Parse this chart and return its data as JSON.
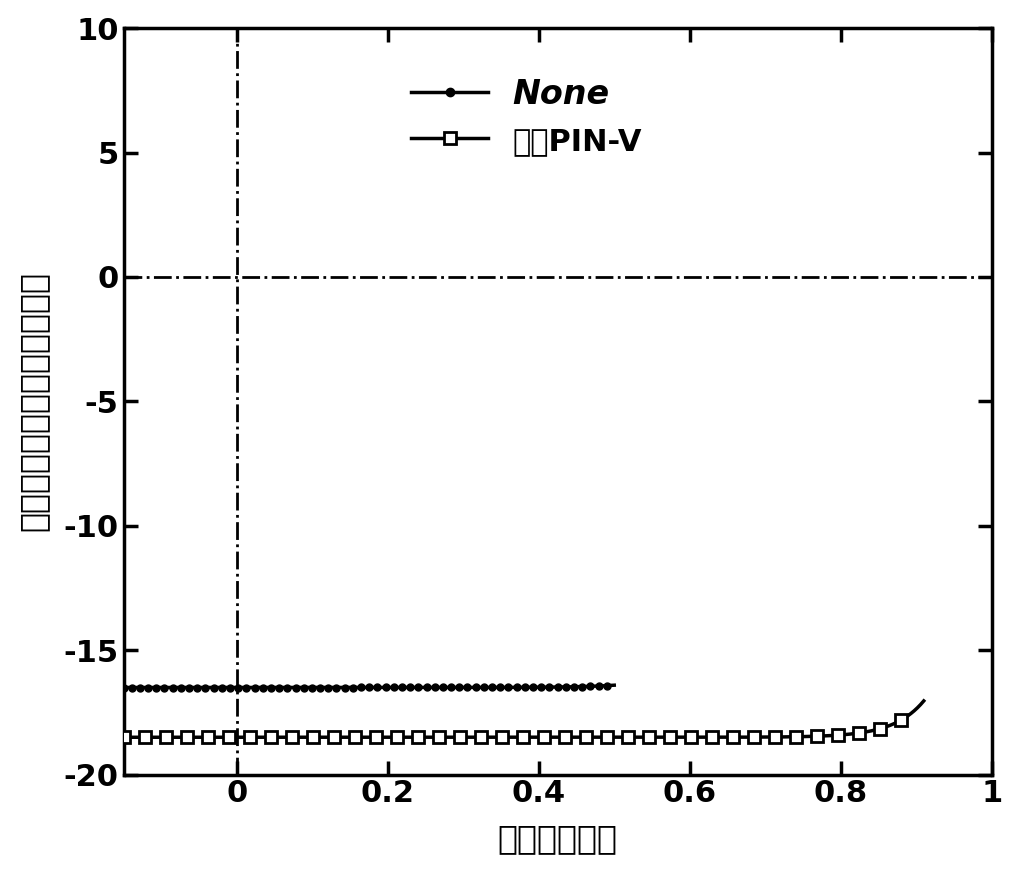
{
  "title": "",
  "xlabel": "电压（伏特）",
  "ylabel": "电流密度（毫安每平方厘米）",
  "xlim": [
    -0.15,
    1.0
  ],
  "ylim": [
    -20,
    10
  ],
  "xticks": [
    0.0,
    0.2,
    0.4,
    0.6,
    0.8,
    1.0
  ],
  "yticks": [
    -20,
    -15,
    -10,
    -5,
    0,
    5,
    10
  ],
  "xtick_labels": [
    "0",
    "0.2",
    "0.4",
    "0.6",
    "0.8",
    "1"
  ],
  "ytick_labels": [
    "-20",
    "-15",
    "-10",
    "-5",
    "0",
    "5",
    "10"
  ],
  "legend1_label": "None",
  "legend2_label": "交联PIN-V",
  "background_color": "#ffffff",
  "line_color": "#000000",
  "none_Jsc": 16.5,
  "none_J0": 2e-06,
  "none_n": 1.8,
  "none_Voc": 0.385,
  "cross_Jsc": 18.5,
  "cross_J0": 2e-10,
  "cross_n": 1.55,
  "cross_Voc": 0.83
}
